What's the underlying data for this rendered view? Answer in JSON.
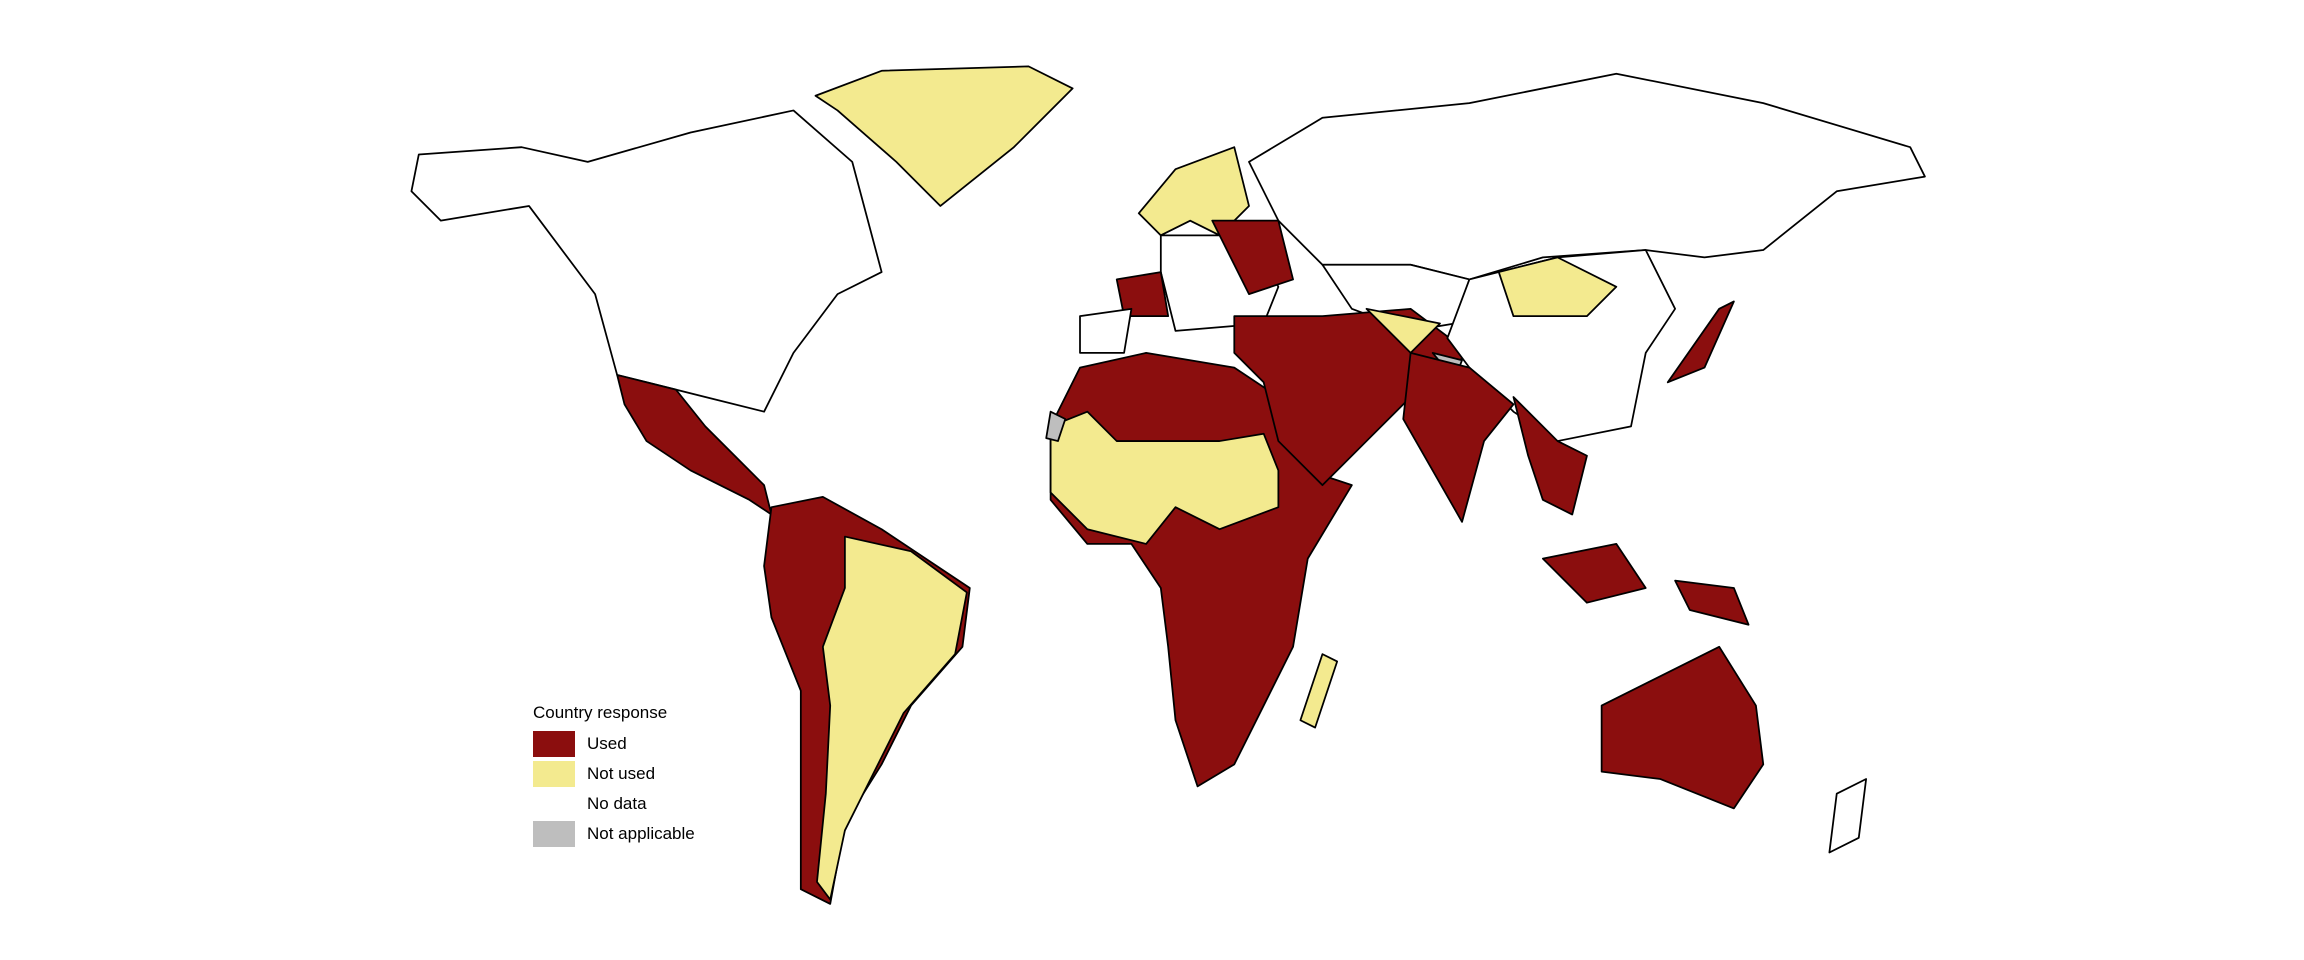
{
  "legend": {
    "title": "Country response",
    "items": [
      {
        "label": "Used",
        "color": "#8b0e0e"
      },
      {
        "label": "Not used",
        "color": "#f3ea8f"
      },
      {
        "label": "No data",
        "color": "#ffffff"
      },
      {
        "label": "Not applicable",
        "color": "#bebebe"
      }
    ]
  }
}
